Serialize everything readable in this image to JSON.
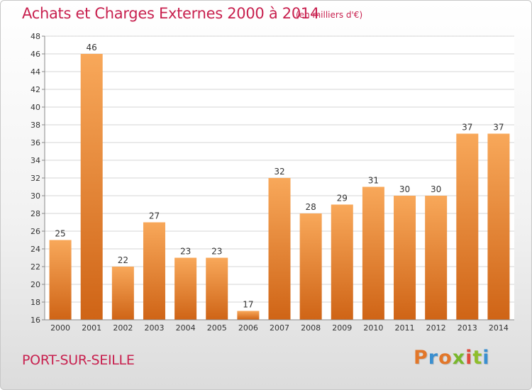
{
  "header": {
    "title": "Achats et Charges Externes 2000 à 2014",
    "unit": "(en milliers d'€)"
  },
  "footer": {
    "commune": "PORT-SUR-SEILLE",
    "logo_text": "Proxiti",
    "logo_colors": [
      "#e2772a",
      "#3a8fd0",
      "#e2772a",
      "#79b72c",
      "#e04b3c",
      "#8fbe2c",
      "#3a8fd0"
    ]
  },
  "colors": {
    "bar_top": "#f8a85a",
    "bar_bottom": "#cf6416",
    "title": "#c8214f"
  },
  "chart_data": {
    "type": "bar",
    "categories": [
      "2000",
      "2001",
      "2002",
      "2003",
      "2004",
      "2005",
      "2006",
      "2007",
      "2008",
      "2009",
      "2010",
      "2011",
      "2012",
      "2013",
      "2014"
    ],
    "values": [
      25,
      46,
      22,
      27,
      23,
      23,
      17,
      32,
      28,
      29,
      31,
      30,
      30,
      37,
      37
    ],
    "ylim": [
      16,
      48
    ],
    "yticks": [
      16,
      18,
      20,
      22,
      24,
      26,
      28,
      30,
      32,
      34,
      36,
      38,
      40,
      42,
      44,
      46,
      48
    ],
    "grid": true,
    "data_labels": true
  }
}
